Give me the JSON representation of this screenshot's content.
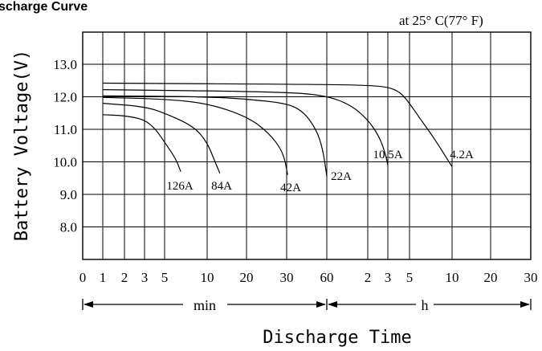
{
  "header": {
    "title": "scharge Curve",
    "condition": "at 25° C(77° F)"
  },
  "chart_data": {
    "type": "line",
    "title": "scharge Curve",
    "ylabel": "Battery Voltage(V)",
    "xlabel": "Discharge Time",
    "ylim": [
      7.0,
      14.0
    ],
    "grid": true,
    "yticks": [
      "13.0",
      "12.0",
      "11.0",
      "10.0",
      "9.0",
      "8.0"
    ],
    "x_segments": [
      {
        "unit_label": "min",
        "ticks": [
          "0",
          "1",
          "2",
          "3",
          "5",
          "10",
          "20",
          "30",
          "60"
        ]
      },
      {
        "unit_label": "h",
        "ticks": [
          "2",
          "3",
          "5",
          "10",
          "20",
          "30"
        ]
      }
    ],
    "series": [
      {
        "name": "126A",
        "points": [
          [
            1,
            11.45
          ],
          [
            2,
            11.42
          ],
          [
            3,
            11.3
          ],
          [
            4,
            11.0
          ],
          [
            5,
            10.6
          ],
          [
            6,
            10.1
          ],
          [
            6.5,
            9.7
          ]
        ]
      },
      {
        "name": "84A",
        "points": [
          [
            1,
            11.8
          ],
          [
            3,
            11.7
          ],
          [
            5,
            11.5
          ],
          [
            8,
            11.1
          ],
          [
            10,
            10.6
          ],
          [
            11.5,
            10.0
          ],
          [
            12.5,
            9.65
          ]
        ]
      },
      {
        "name": "42A",
        "points": [
          [
            1,
            11.98
          ],
          [
            5,
            11.93
          ],
          [
            10,
            11.8
          ],
          [
            20,
            11.4
          ],
          [
            25,
            10.9
          ],
          [
            29,
            10.3
          ],
          [
            30.5,
            9.6
          ]
        ]
      },
      {
        "name": "22A",
        "points": [
          [
            1,
            12.03
          ],
          [
            10,
            12.0
          ],
          [
            20,
            11.93
          ],
          [
            30,
            11.8
          ],
          [
            40,
            11.55
          ],
          [
            50,
            11.0
          ],
          [
            56,
            10.4
          ],
          [
            60,
            9.55
          ]
        ]
      },
      {
        "name": "10.5A",
        "points": [
          [
            1,
            12.22
          ],
          [
            30,
            12.15
          ],
          [
            60,
            12.03
          ],
          [
            90,
            11.75
          ],
          [
            120,
            11.3
          ],
          [
            150,
            10.8
          ],
          [
            170,
            10.3
          ],
          [
            180,
            9.9
          ]
        ]
      },
      {
        "name": "4.2A",
        "points": [
          [
            1,
            12.42
          ],
          [
            60,
            12.38
          ],
          [
            120,
            12.35
          ],
          [
            180,
            12.3
          ],
          [
            240,
            12.15
          ],
          [
            300,
            11.8
          ],
          [
            360,
            11.3
          ],
          [
            420,
            10.9
          ],
          [
            500,
            10.4
          ],
          [
            600,
            9.85
          ]
        ]
      }
    ]
  }
}
